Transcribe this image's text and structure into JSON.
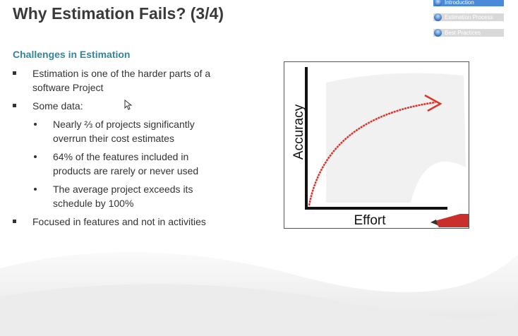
{
  "header": {
    "title": "Why Estimation Fails? (3/4)"
  },
  "nav": [
    "Introduction",
    "Estimation Process",
    "Best Practices"
  ],
  "content": {
    "heading": "Challenges in Estimation",
    "bullets": [
      {
        "text": "Estimation is one of the harder parts of a software Project"
      },
      {
        "text": "Some data:",
        "sub": [
          "Nearly ⅔ of projects significantly overrun their cost estimates",
          "64% of the features included in products are rarely or never used",
          "The average project exceeds its schedule by 100%"
        ]
      },
      {
        "text": "Focused in features and not in activities"
      }
    ]
  },
  "figure": {
    "y_label": "Accuracy",
    "x_label": "Effort"
  }
}
